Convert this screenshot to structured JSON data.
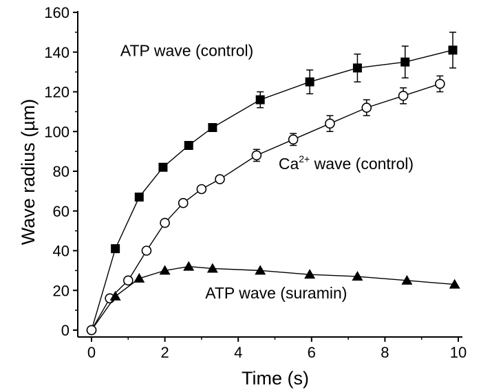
{
  "chart_data": {
    "type": "scatter",
    "xlabel": "Time (s)",
    "ylabel": "Wave radius (µm)",
    "xlim": [
      0,
      10
    ],
    "ylim": [
      0,
      160
    ],
    "xticks": [
      "0",
      "2",
      "4",
      "6",
      "8",
      "10"
    ],
    "yticks": [
      "0",
      "20",
      "40",
      "60",
      "80",
      "100",
      "120",
      "140",
      "160"
    ],
    "grid": false,
    "legend": "none",
    "series": [
      {
        "name": "ATP wave (control)",
        "marker": "filled-square",
        "color": "#000000",
        "x": [
          0,
          0.65,
          1.3,
          1.95,
          2.65,
          3.3,
          4.6,
          5.95,
          7.25,
          8.55,
          9.85
        ],
        "y": [
          0,
          41,
          67,
          82,
          93,
          102,
          116,
          125,
          132,
          135,
          141
        ],
        "err": [
          0,
          0,
          0,
          0,
          0,
          0,
          4,
          6,
          7,
          8,
          9
        ]
      },
      {
        "name": "Ca2+ wave (control)",
        "marker": "open-circle",
        "color": "#000000",
        "x": [
          0,
          0.5,
          1.0,
          1.5,
          2.0,
          2.5,
          3.0,
          3.5,
          4.5,
          5.5,
          6.5,
          7.5,
          8.5,
          9.5
        ],
        "y": [
          0,
          16,
          25,
          40,
          54,
          64,
          71,
          76,
          88,
          96,
          104,
          112,
          118,
          124
        ],
        "err": [
          0,
          0,
          0,
          0,
          0,
          0,
          0,
          0,
          3,
          3,
          4,
          4,
          4,
          4
        ]
      },
      {
        "name": "ATP wave (suramin)",
        "marker": "filled-triangle",
        "color": "#000000",
        "x": [
          0,
          0.65,
          1.3,
          2.0,
          2.65,
          3.3,
          4.6,
          5.95,
          7.25,
          8.6,
          9.9
        ],
        "y": [
          0,
          17,
          26,
          30,
          32,
          31,
          30,
          28,
          27,
          25,
          23
        ],
        "err": [
          0,
          0,
          0,
          0,
          0,
          0,
          0,
          0,
          0,
          0,
          0
        ]
      }
    ],
    "annotations": [
      {
        "text": "ATP wave (control)",
        "x": 2.6,
        "y": 138
      },
      {
        "text": "Ca",
        "sup": "2+",
        "suffix": " wave (control)",
        "x": 5.1,
        "y": 81
      },
      {
        "text": "ATP wave (suramin)",
        "x": 3.1,
        "y": 16
      }
    ]
  }
}
